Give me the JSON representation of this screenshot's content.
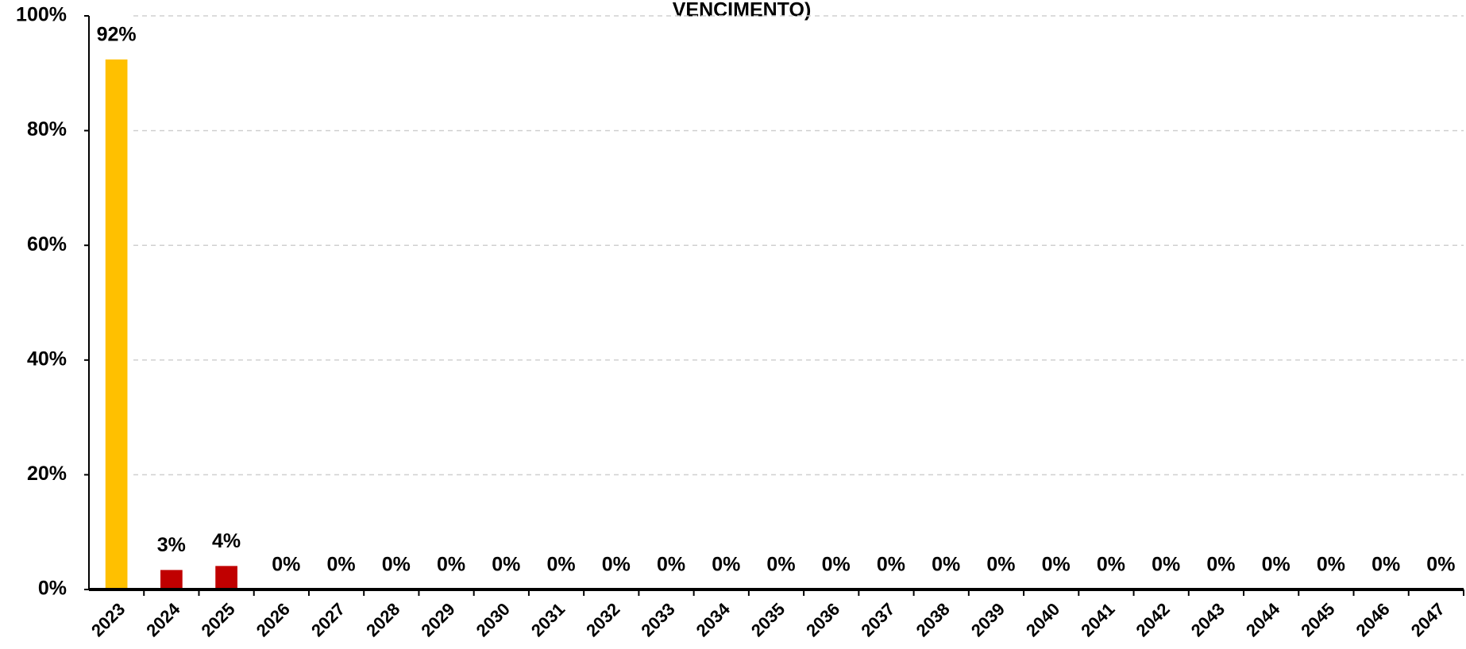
{
  "chart_data": {
    "type": "bar",
    "title": "VENCIMENTO)",
    "categories": [
      "2023",
      "2024",
      "2025",
      "2026",
      "2027",
      "2028",
      "2029",
      "2030",
      "2031",
      "2032",
      "2033",
      "2034",
      "2035",
      "2036",
      "2037",
      "2038",
      "2039",
      "2040",
      "2041",
      "2042",
      "2043",
      "2044",
      "2045",
      "2046",
      "2047"
    ],
    "values": [
      92.4,
      3.4,
      4.1,
      0,
      0,
      0,
      0,
      0,
      0,
      0,
      0,
      0,
      0,
      0,
      0,
      0,
      0,
      0,
      0,
      0,
      0,
      0,
      0,
      0,
      0
    ],
    "value_labels": [
      "92%",
      "3%",
      "4%",
      "0%",
      "0%",
      "0%",
      "0%",
      "0%",
      "0%",
      "0%",
      "0%",
      "0%",
      "0%",
      "0%",
      "0%",
      "0%",
      "0%",
      "0%",
      "0%",
      "0%",
      "0%",
      "0%",
      "0%",
      "0%",
      "0%"
    ],
    "colors": [
      "#FFC000",
      "#C00000",
      "#C00000",
      "#C00000",
      "#C00000",
      "#C00000",
      "#C00000",
      "#C00000",
      "#C00000",
      "#C00000",
      "#C00000",
      "#C00000",
      "#C00000",
      "#C00000",
      "#C00000",
      "#C00000",
      "#C00000",
      "#C00000",
      "#C00000",
      "#C00000",
      "#C00000",
      "#C00000",
      "#C00000",
      "#C00000",
      "#C00000"
    ],
    "ylim": [
      0,
      100
    ],
    "yticks": [
      {
        "value": 0,
        "label": "0%"
      },
      {
        "value": 20,
        "label": "20%"
      },
      {
        "value": 40,
        "label": "40%"
      },
      {
        "value": 60,
        "label": "60%"
      },
      {
        "value": 80,
        "label": "80%"
      },
      {
        "value": 100,
        "label": "100%"
      }
    ],
    "grid": true
  }
}
